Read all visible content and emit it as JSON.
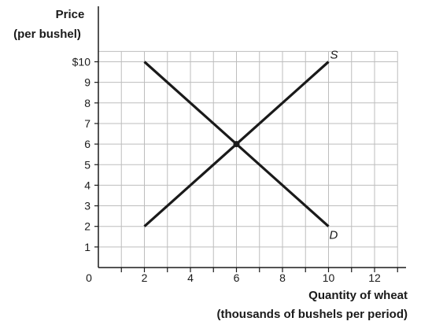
{
  "chart_data": {
    "type": "line",
    "ylabel_line1": "Price",
    "ylabel_line2": "(per bushel)",
    "xlabel_line1": "Quantity of wheat",
    "xlabel_line2": "(thousands of bushels per period)",
    "x_ticks": [
      0,
      2,
      4,
      6,
      8,
      10,
      12
    ],
    "x_tick_labels": [
      "0",
      "2",
      "4",
      "6",
      "8",
      "10",
      "12"
    ],
    "y_ticks": [
      1,
      2,
      3,
      4,
      5,
      6,
      7,
      8,
      9,
      10
    ],
    "y_tick_labels": [
      "1",
      "2",
      "3",
      "4",
      "5",
      "6",
      "7",
      "8",
      "9",
      "$10"
    ],
    "xlim": [
      0,
      14
    ],
    "ylim": [
      0,
      11
    ],
    "grid": true,
    "series": [
      {
        "name": "S",
        "x": [
          2,
          10
        ],
        "y": [
          2,
          10
        ]
      },
      {
        "name": "D",
        "x": [
          2,
          10
        ],
        "y": [
          10,
          2
        ]
      }
    ],
    "equilibrium": {
      "x": 6,
      "y": 6
    },
    "line_color": "#1a1a1a"
  }
}
